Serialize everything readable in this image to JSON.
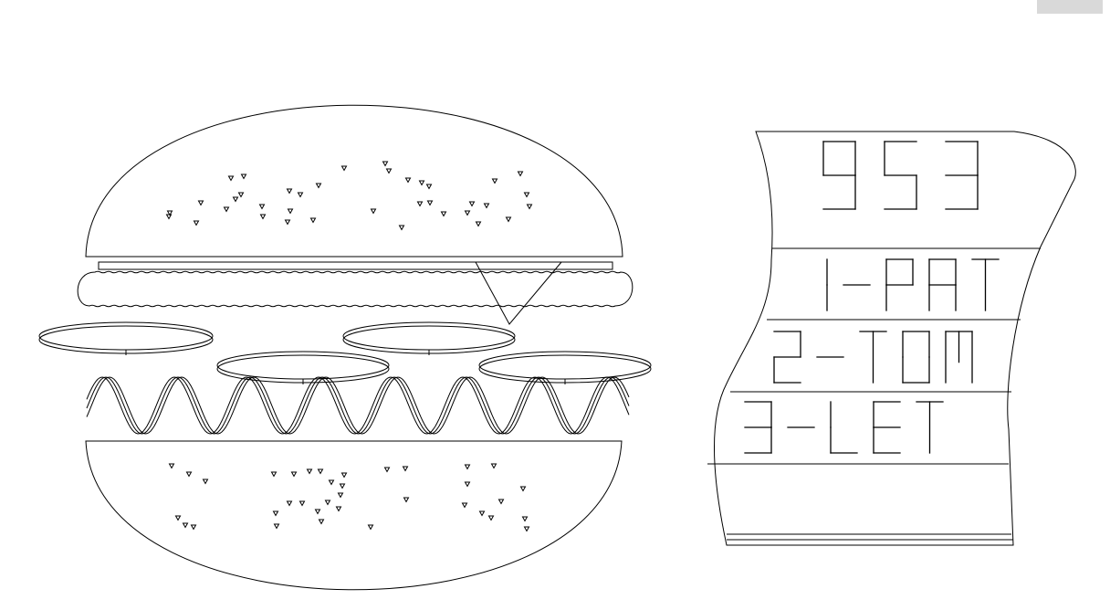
{
  "corner_button": {
    "label": ""
  },
  "receipt": {
    "order_number": "953",
    "lines": [
      "1-PAT",
      "2-TOM",
      "3-LET"
    ]
  },
  "colors": {
    "ink": "#000000",
    "background": "#ffffff",
    "button": "#d9d9d9"
  },
  "icons": [
    "burger-drawing",
    "sesame-seed-icon",
    "receipt-drawing"
  ]
}
